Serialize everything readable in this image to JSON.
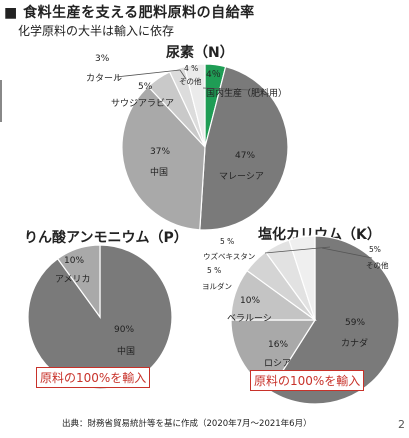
{
  "title": "■ 食料生産を支える肥料原料の自給率",
  "subtitle": "化学原料の大半は輸入に依存",
  "source": "出典：財務省貿易統計等を基に作成（2020年7月～2021年6月）",
  "page_number": "2",
  "colors": {
    "domestic": "#1f9d55",
    "dark": "#7a7a7a",
    "mid": "#a9a9a9",
    "light": "#c9c9c9",
    "lighter": "#dcdcdc",
    "lightest": "#ebebeb",
    "note_red": "#c8322a"
  },
  "chart_data": [
    {
      "type": "pie",
      "title": "尿素（N）",
      "slices": [
        {
          "label": "国内生産（肥料用）",
          "value": 4,
          "display": "4％",
          "color": "#1f9d55"
        },
        {
          "label": "マレーシア",
          "value": 47,
          "display": "47%",
          "color": "#7a7a7a"
        },
        {
          "label": "中国",
          "value": 37,
          "display": "37%",
          "color": "#a9a9a9"
        },
        {
          "label": "サウジアラビア",
          "value": 5,
          "display": "5%",
          "color": "#c9c9c9"
        },
        {
          "label": "カタール",
          "value": 3,
          "display": "3%",
          "color": "#dcdcdc"
        },
        {
          "label": "その他",
          "value": 4,
          "display": "4 %",
          "color": "#ebebeb"
        }
      ]
    },
    {
      "type": "pie",
      "title": "りん酸アンモニウム（P）",
      "note": "原料の100%を輸入",
      "slices": [
        {
          "label": "中国",
          "value": 90,
          "display": "90%",
          "color": "#7a7a7a"
        },
        {
          "label": "アメリカ",
          "value": 10,
          "display": "10%",
          "color": "#a9a9a9"
        }
      ]
    },
    {
      "type": "pie",
      "title": "塩化カリウム（K）",
      "note": "原料の100%を輸入",
      "slices": [
        {
          "label": "カナダ",
          "value": 59,
          "display": "59%",
          "color": "#7a7a7a"
        },
        {
          "label": "ロシア",
          "value": 16,
          "display": "16%",
          "color": "#a9a9a9"
        },
        {
          "label": "ベラルーシ",
          "value": 10,
          "display": "10%",
          "color": "#c4c4c4"
        },
        {
          "label": "ヨルダン",
          "value": 5,
          "display": "5 %",
          "color": "#d4d4d4"
        },
        {
          "label": "ウズベキスタン",
          "value": 5,
          "display": "5 %",
          "color": "#e2e2e2"
        },
        {
          "label": "その他",
          "value": 5,
          "display": "5%",
          "color": "#efefef"
        }
      ]
    }
  ]
}
